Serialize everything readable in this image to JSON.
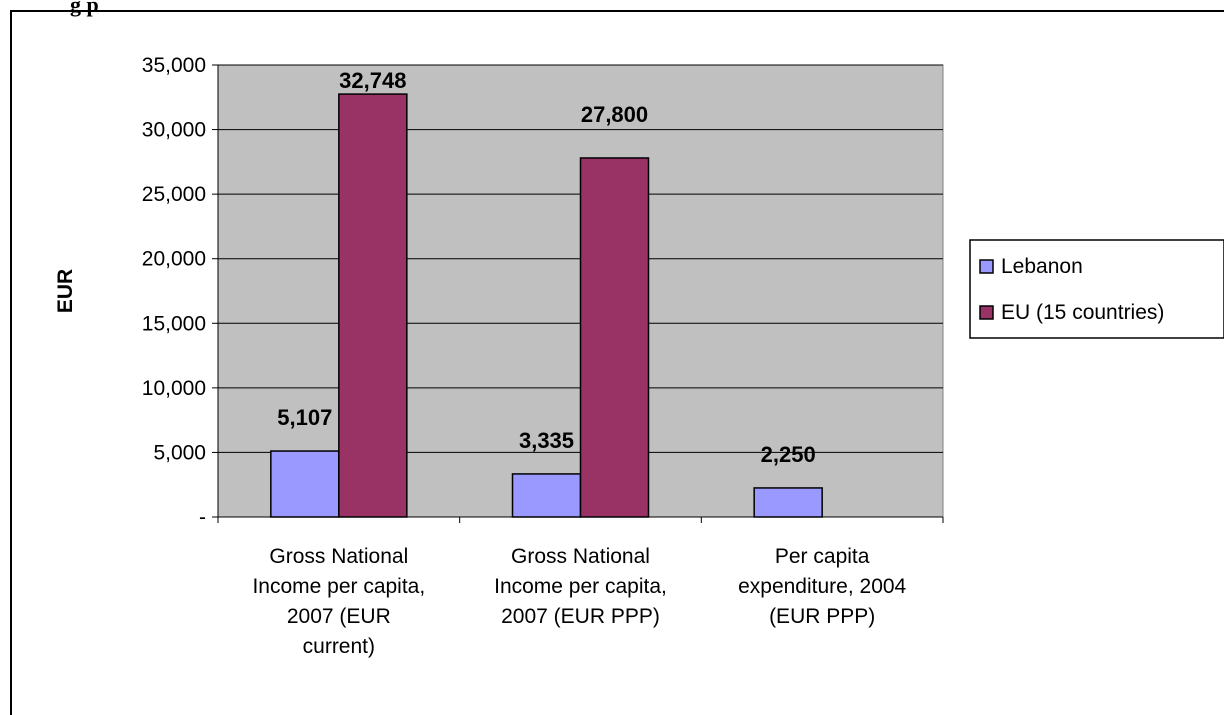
{
  "chart_data": {
    "type": "bar",
    "title": "",
    "xlabel": "",
    "ylabel": "EUR",
    "ylim": [
      0,
      35000
    ],
    "yticks": [
      0,
      5000,
      10000,
      15000,
      20000,
      25000,
      30000,
      35000
    ],
    "ytick_labels": [
      "-",
      "5,000",
      "10,000",
      "15,000",
      "20,000",
      "25,000",
      "30,000",
      "35,000"
    ],
    "grid": true,
    "legend_position": "right",
    "categories": [
      [
        "Gross National",
        "Income per capita,",
        "2007 (EUR",
        "current)"
      ],
      [
        "Gross National",
        "Income per capita,",
        "2007 (EUR PPP)"
      ],
      [
        "Per capita",
        "expenditure, 2004",
        "(EUR PPP)"
      ]
    ],
    "series": [
      {
        "name": "Lebanon",
        "color": "#9999ff",
        "values": [
          5107,
          3335,
          2250
        ],
        "labels": [
          "5,107",
          "3,335",
          "2,250"
        ]
      },
      {
        "name": "EU (15 countries)",
        "color": "#993366",
        "values": [
          32748,
          27800,
          null
        ],
        "labels": [
          "32,748",
          "27,800",
          ""
        ]
      }
    ],
    "plot_background": "#c0c0c0"
  },
  "page": {
    "partial_title": "g                  p"
  }
}
